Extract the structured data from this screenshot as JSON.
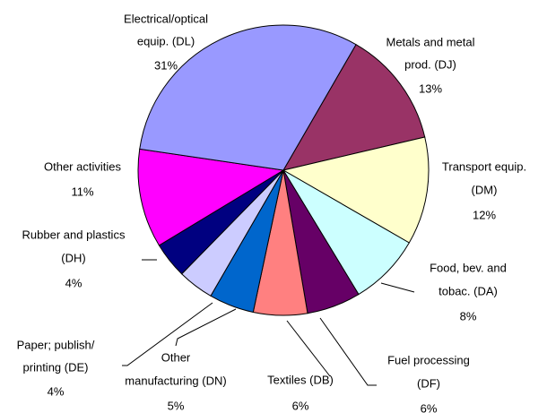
{
  "chart_data": {
    "type": "pie",
    "categories": [
      [
        "Metals and metal",
        "prod. (DJ)"
      ],
      [
        "Transport equip.",
        "(DM)"
      ],
      [
        "Food, bev. and",
        "tobac. (DA)"
      ],
      [
        "Fuel processing",
        "(DF)"
      ],
      [
        "Textiles (DB)"
      ],
      [
        "Other",
        "manufacturing (DN)"
      ],
      [
        "Paper; publish/",
        "printing (DE)"
      ],
      [
        "Rubber and plastics",
        "(DH)"
      ],
      [
        "Other activities"
      ],
      [
        "Electrical/optical",
        "equip. (DL)"
      ]
    ],
    "values": [
      13,
      12,
      8,
      6,
      6,
      5,
      4,
      4,
      11,
      31
    ],
    "value_labels": [
      "13%",
      "12%",
      "8%",
      "6%",
      "6%",
      "5%",
      "4%",
      "4%",
      "11%",
      "31%"
    ],
    "colors": [
      "#993366",
      "#ffffcc",
      "#ccffff",
      "#660066",
      "#ff8080",
      "#0066cc",
      "#ccccff",
      "#000080",
      "#ff00ff",
      "#9999ff"
    ]
  }
}
